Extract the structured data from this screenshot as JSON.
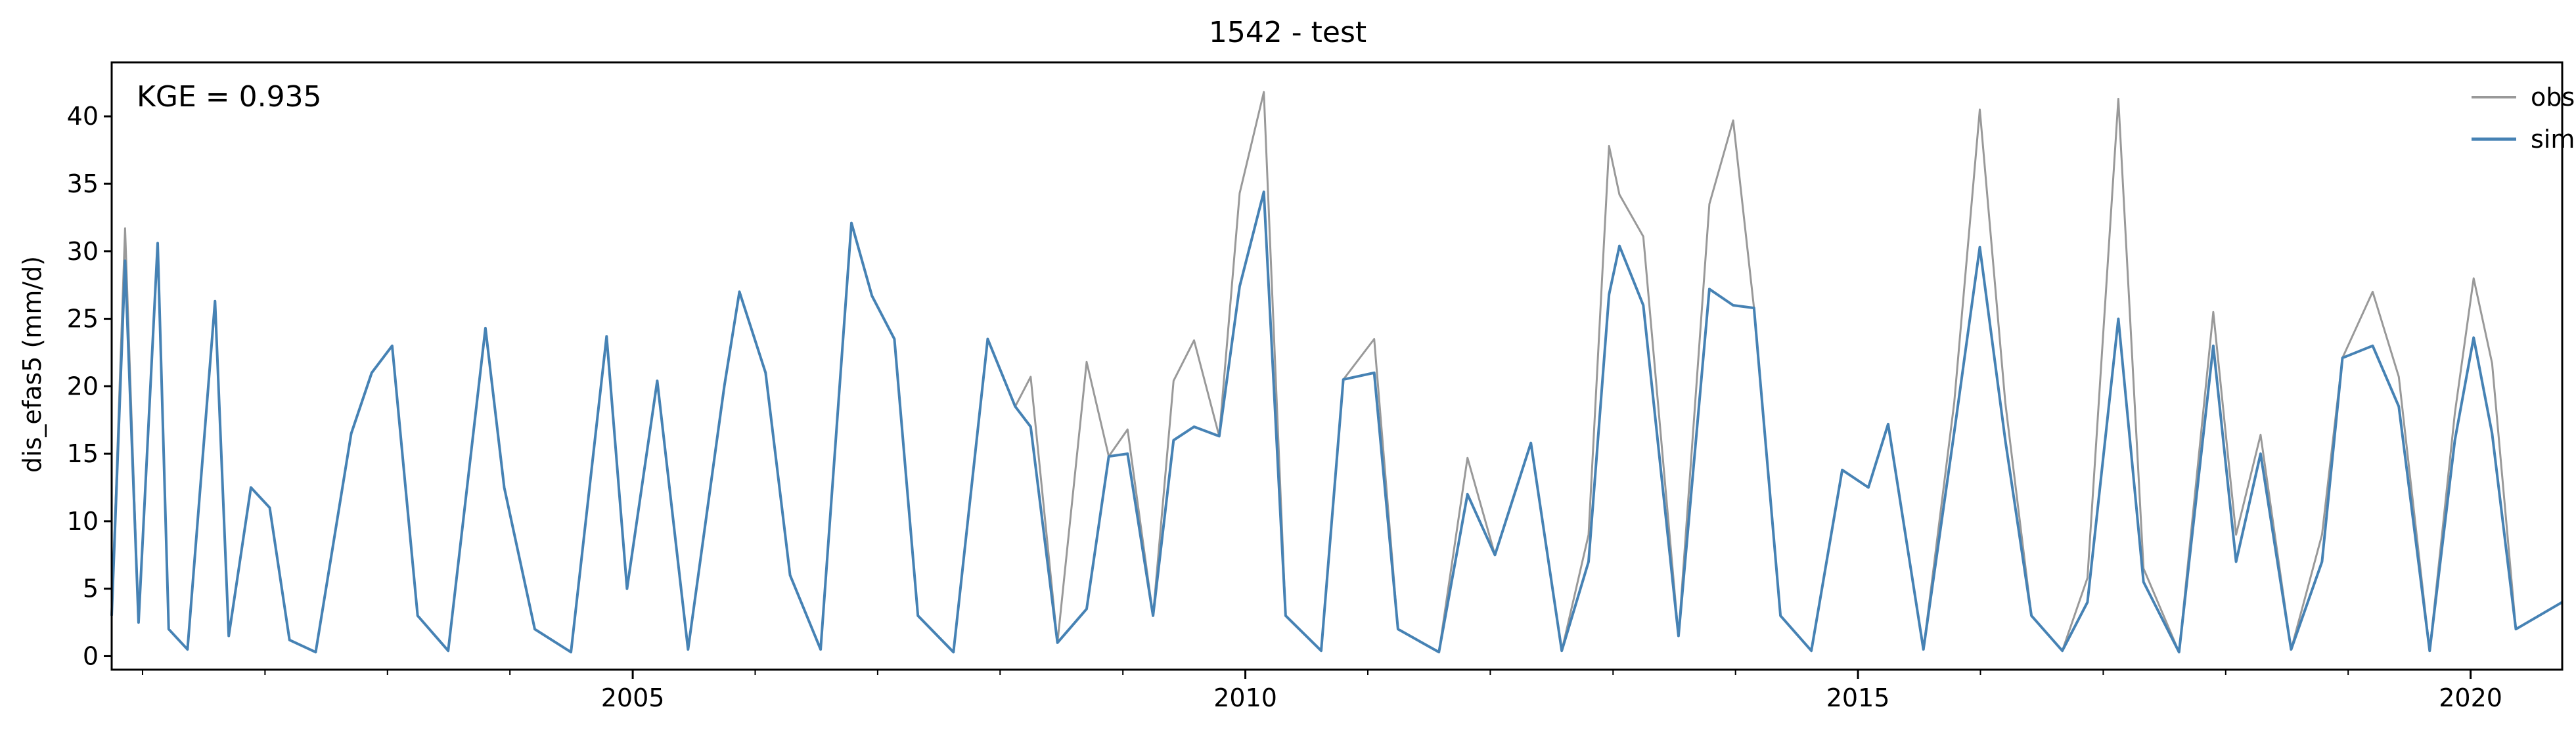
{
  "chart_data": {
    "type": "line",
    "title": "1542 - test",
    "xlabel": "",
    "ylabel": "dis_efas5 (mm/d)",
    "annotation": "KGE = 0.935",
    "xlim": [
      "2000-10-01",
      "2020-09-30"
    ],
    "ylim": [
      -1,
      44
    ],
    "yticks": [
      0,
      5,
      10,
      15,
      20,
      25,
      30,
      35,
      40
    ],
    "xticks": [
      "2005",
      "2010",
      "2015",
      "2020"
    ],
    "grid": false,
    "legend_position": "top-right",
    "colors": {
      "obs": "#999999",
      "sim": "#4682b4"
    },
    "series": [
      {
        "name": "obs",
        "color": "#999999",
        "points": [
          [
            "2000-10-01",
            3.0
          ],
          [
            "2000-11-10",
            31.7
          ],
          [
            "2000-12-20",
            2.5
          ],
          [
            "2001-02-15",
            30.6
          ],
          [
            "2001-03-20",
            2.0
          ],
          [
            "2001-05-15",
            0.5
          ],
          [
            "2001-08-05",
            26.3
          ],
          [
            "2001-09-15",
            1.5
          ],
          [
            "2001-11-20",
            12.5
          ],
          [
            "2002-01-15",
            11.0
          ],
          [
            "2002-03-15",
            1.2
          ],
          [
            "2002-06-01",
            0.3
          ],
          [
            "2002-09-15",
            16.5
          ],
          [
            "2002-11-15",
            21.0
          ],
          [
            "2003-01-15",
            23.0
          ],
          [
            "2003-04-01",
            3.0
          ],
          [
            "2003-07-01",
            0.4
          ],
          [
            "2003-10-20",
            24.3
          ],
          [
            "2003-12-15",
            12.5
          ],
          [
            "2004-03-15",
            2.0
          ],
          [
            "2004-07-01",
            0.3
          ],
          [
            "2004-10-15",
            23.7
          ],
          [
            "2004-12-15",
            5.0
          ],
          [
            "2005-03-15",
            20.4
          ],
          [
            "2005-06-15",
            0.5
          ],
          [
            "2005-10-01",
            20.0
          ],
          [
            "2005-11-15",
            27.0
          ],
          [
            "2006-02-01",
            21.0
          ],
          [
            "2006-04-15",
            6.0
          ],
          [
            "2006-07-15",
            0.5
          ],
          [
            "2006-10-15",
            32.1
          ],
          [
            "2006-12-15",
            26.7
          ],
          [
            "2007-02-20",
            23.5
          ],
          [
            "2007-05-01",
            3.0
          ],
          [
            "2007-08-15",
            0.3
          ],
          [
            "2007-11-25",
            23.5
          ],
          [
            "2008-02-15",
            18.5
          ],
          [
            "2008-04-01",
            20.7
          ],
          [
            "2008-06-20",
            1.0
          ],
          [
            "2008-09-15",
            21.8
          ],
          [
            "2008-11-20",
            14.8
          ],
          [
            "2009-01-15",
            16.8
          ],
          [
            "2009-04-01",
            3.0
          ],
          [
            "2009-06-01",
            20.4
          ],
          [
            "2009-08-01",
            23.4
          ],
          [
            "2009-10-15",
            16.3
          ],
          [
            "2009-12-15",
            34.3
          ],
          [
            "2010-02-25",
            41.8
          ],
          [
            "2010-05-01",
            3.0
          ],
          [
            "2010-08-15",
            0.4
          ],
          [
            "2010-10-20",
            20.5
          ],
          [
            "2011-01-20",
            23.5
          ],
          [
            "2011-04-01",
            2.0
          ],
          [
            "2011-08-01",
            0.3
          ],
          [
            "2011-10-25",
            14.7
          ],
          [
            "2012-01-15",
            7.5
          ],
          [
            "2012-05-01",
            15.8
          ],
          [
            "2012-08-01",
            0.4
          ],
          [
            "2012-10-20",
            9.0
          ],
          [
            "2012-12-20",
            37.8
          ],
          [
            "2013-01-20",
            34.2
          ],
          [
            "2013-04-01",
            31.1
          ],
          [
            "2013-07-15",
            1.5
          ],
          [
            "2013-10-15",
            33.5
          ],
          [
            "2013-12-25",
            39.7
          ],
          [
            "2014-02-25",
            25.8
          ],
          [
            "2014-05-15",
            3.0
          ],
          [
            "2014-08-15",
            0.4
          ],
          [
            "2014-11-15",
            13.8
          ],
          [
            "2015-02-01",
            12.5
          ],
          [
            "2015-04-01",
            17.2
          ],
          [
            "2015-07-15",
            0.5
          ],
          [
            "2015-10-15",
            18.8
          ],
          [
            "2015-12-30",
            40.5
          ],
          [
            "2016-03-15",
            18.8
          ],
          [
            "2016-06-01",
            3.0
          ],
          [
            "2016-09-01",
            0.4
          ],
          [
            "2016-11-15",
            5.8
          ],
          [
            "2017-02-15",
            41.3
          ],
          [
            "2017-05-01",
            6.5
          ],
          [
            "2017-08-15",
            0.3
          ],
          [
            "2017-11-25",
            25.5
          ],
          [
            "2018-02-01",
            9.0
          ],
          [
            "2018-04-15",
            16.4
          ],
          [
            "2018-07-15",
            0.5
          ],
          [
            "2018-10-15",
            9.0
          ],
          [
            "2018-12-15",
            22.1
          ],
          [
            "2019-03-15",
            27.0
          ],
          [
            "2019-06-01",
            20.7
          ],
          [
            "2019-09-01",
            0.4
          ],
          [
            "2019-11-15",
            18.0
          ],
          [
            "2020-01-10",
            28.0
          ],
          [
            "2020-03-05",
            21.7
          ],
          [
            "2020-05-15",
            2.0
          ],
          [
            "2020-09-30",
            4.0
          ]
        ]
      },
      {
        "name": "sim",
        "color": "#4682b4",
        "points": [
          [
            "2000-10-01",
            3.0
          ],
          [
            "2000-11-10",
            29.3
          ],
          [
            "2000-12-20",
            2.5
          ],
          [
            "2001-02-15",
            30.6
          ],
          [
            "2001-03-20",
            2.0
          ],
          [
            "2001-05-15",
            0.5
          ],
          [
            "2001-08-05",
            26.3
          ],
          [
            "2001-09-15",
            1.5
          ],
          [
            "2001-11-20",
            12.5
          ],
          [
            "2002-01-15",
            11.0
          ],
          [
            "2002-03-15",
            1.2
          ],
          [
            "2002-06-01",
            0.3
          ],
          [
            "2002-09-15",
            16.5
          ],
          [
            "2002-11-15",
            21.0
          ],
          [
            "2003-01-15",
            23.0
          ],
          [
            "2003-04-01",
            3.0
          ],
          [
            "2003-07-01",
            0.4
          ],
          [
            "2003-10-20",
            24.3
          ],
          [
            "2003-12-15",
            12.5
          ],
          [
            "2004-03-15",
            2.0
          ],
          [
            "2004-07-01",
            0.3
          ],
          [
            "2004-10-15",
            23.7
          ],
          [
            "2004-12-15",
            5.0
          ],
          [
            "2005-03-15",
            20.4
          ],
          [
            "2005-06-15",
            0.5
          ],
          [
            "2005-10-01",
            20.0
          ],
          [
            "2005-11-15",
            27.0
          ],
          [
            "2006-02-01",
            21.0
          ],
          [
            "2006-04-15",
            6.0
          ],
          [
            "2006-07-15",
            0.5
          ],
          [
            "2006-10-15",
            32.1
          ],
          [
            "2006-12-15",
            26.7
          ],
          [
            "2007-02-20",
            23.5
          ],
          [
            "2007-05-01",
            3.0
          ],
          [
            "2007-08-15",
            0.3
          ],
          [
            "2007-11-25",
            23.5
          ],
          [
            "2008-02-15",
            18.5
          ],
          [
            "2008-04-01",
            17.0
          ],
          [
            "2008-06-20",
            1.0
          ],
          [
            "2008-09-15",
            3.5
          ],
          [
            "2008-11-20",
            14.8
          ],
          [
            "2009-01-15",
            15.0
          ],
          [
            "2009-04-01",
            3.0
          ],
          [
            "2009-06-01",
            16.0
          ],
          [
            "2009-08-01",
            17.0
          ],
          [
            "2009-10-15",
            16.3
          ],
          [
            "2009-12-15",
            27.4
          ],
          [
            "2010-02-25",
            34.4
          ],
          [
            "2010-05-01",
            3.0
          ],
          [
            "2010-08-15",
            0.4
          ],
          [
            "2010-10-20",
            20.5
          ],
          [
            "2011-01-20",
            21.0
          ],
          [
            "2011-04-01",
            2.0
          ],
          [
            "2011-08-01",
            0.3
          ],
          [
            "2011-10-25",
            12.0
          ],
          [
            "2012-01-15",
            7.5
          ],
          [
            "2012-05-01",
            15.8
          ],
          [
            "2012-08-01",
            0.4
          ],
          [
            "2012-10-20",
            7.0
          ],
          [
            "2012-12-20",
            26.8
          ],
          [
            "2013-01-20",
            30.4
          ],
          [
            "2013-04-01",
            26.0
          ],
          [
            "2013-07-15",
            1.5
          ],
          [
            "2013-10-15",
            27.2
          ],
          [
            "2013-12-25",
            26.0
          ],
          [
            "2014-02-25",
            25.8
          ],
          [
            "2014-05-15",
            3.0
          ],
          [
            "2014-08-15",
            0.4
          ],
          [
            "2014-11-15",
            13.8
          ],
          [
            "2015-02-01",
            12.5
          ],
          [
            "2015-04-01",
            17.2
          ],
          [
            "2015-07-15",
            0.5
          ],
          [
            "2015-10-15",
            16.6
          ],
          [
            "2015-12-30",
            30.3
          ],
          [
            "2016-03-15",
            16.0
          ],
          [
            "2016-06-01",
            3.0
          ],
          [
            "2016-09-01",
            0.4
          ],
          [
            "2016-11-15",
            4.0
          ],
          [
            "2017-02-15",
            25.0
          ],
          [
            "2017-05-01",
            5.5
          ],
          [
            "2017-08-15",
            0.3
          ],
          [
            "2017-11-25",
            23.0
          ],
          [
            "2018-02-01",
            7.0
          ],
          [
            "2018-04-15",
            15.0
          ],
          [
            "2018-07-15",
            0.5
          ],
          [
            "2018-10-15",
            7.0
          ],
          [
            "2018-12-15",
            22.1
          ],
          [
            "2019-03-15",
            23.0
          ],
          [
            "2019-06-01",
            18.5
          ],
          [
            "2019-09-01",
            0.4
          ],
          [
            "2019-11-15",
            16.0
          ],
          [
            "2020-01-10",
            23.6
          ],
          [
            "2020-03-05",
            16.5
          ],
          [
            "2020-05-15",
            2.0
          ],
          [
            "2020-09-30",
            4.0
          ]
        ]
      }
    ]
  }
}
